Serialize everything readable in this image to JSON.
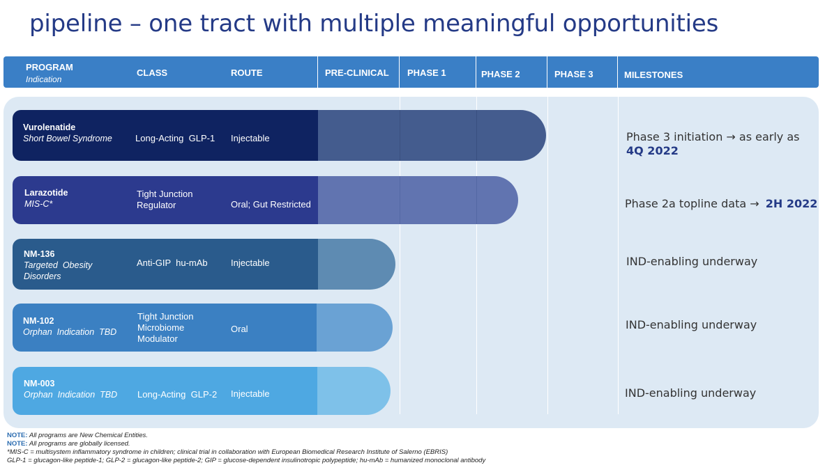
{
  "title": "pipeline – one tract with multiple meaningful opportunities",
  "header": {
    "program": "PROGRAM",
    "indication": "Indication",
    "class": "CLASS",
    "route": "ROUTE",
    "preclinical": "PRE-CLINICAL",
    "phase1": "PHASE 1",
    "phase2": "PHASE 2",
    "phase3": "PHASE 3",
    "milestones": "MILESTONES"
  },
  "programs": [
    {
      "name": "Vurolenatide",
      "indication": "Short Bowel Syndrome",
      "class_lines": [
        "Long-Acting  GLP-1"
      ],
      "route": "Injectable",
      "stage": "Phase 2",
      "milestone_text": "Phase 3 initiation → as early as",
      "milestone_bold": "4Q 2022",
      "color": "#0f2361",
      "progress_color": "#445c8e"
    },
    {
      "name": "Larazotide",
      "indication": "MIS-C*",
      "class_lines": [
        "Tight Junction",
        "Regulator"
      ],
      "route": "Oral; Gut Restricted",
      "stage": "Phase 2",
      "milestone_text": "Phase 2a topline data →",
      "milestone_bold": "2H 2022",
      "color": "#2c3a8e",
      "progress_color": "#6174b0"
    },
    {
      "name": "NM-136",
      "indication_lines": [
        "Targeted  Obesity",
        "Disorders"
      ],
      "class_lines": [
        "Anti-GIP  hu-mAb"
      ],
      "route": "Injectable",
      "stage": "Pre-clinical",
      "milestone_text": "IND-enabling underway",
      "color": "#2a5b8c",
      "progress_color": "#5e8bb2"
    },
    {
      "name": "NM-102",
      "indication": "Orphan  Indication  TBD",
      "class_lines": [
        "Tight Junction",
        "Microbiome",
        "Modulator"
      ],
      "route": "Oral",
      "stage": "Pre-clinical",
      "milestone_text": "IND-enabling underway",
      "color": "#3b80c2",
      "progress_color": "#6aa2d4"
    },
    {
      "name": "NM-003",
      "indication": "Orphan  Indication  TBD",
      "class_lines": [
        "Long-Acting  GLP-2"
      ],
      "route": "Injectable",
      "stage": "Pre-clinical",
      "milestone_text": "IND-enabling underway",
      "color": "#4ea8e2",
      "progress_color": "#7ec1e9"
    }
  ],
  "notes": {
    "label1": "NOTE:",
    "text1": "All programs are New Chemical Entities.",
    "label2": "NOTE:",
    "text2": "All programs are globally licensed.",
    "line3": "*MIS-C = multisystem inflammatory syndrome in children; clinical trial in collaboration with European Biomedical Research Institute of Salerno (EBRIS)",
    "line4": "GLP-1 = glucagon-like peptide-1; GLP-2 = glucagon-like peptide-2; GIP = glucose-dependent insulinotropic polypeptide; hu-mAb = humanized monoclonal antibody"
  }
}
